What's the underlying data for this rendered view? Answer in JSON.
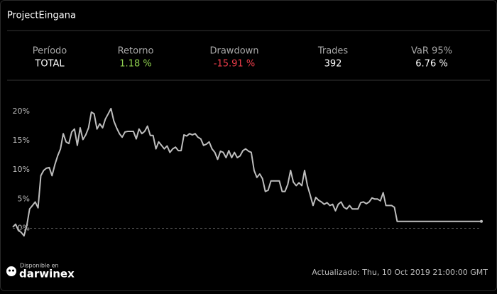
{
  "header": {
    "title": "ProjectEingana"
  },
  "stats": [
    {
      "label": "Período",
      "value": "TOTAL"
    },
    {
      "label": "Retorno",
      "value": "1.18 %"
    },
    {
      "label": "Drawdown",
      "value": "-15.91 %"
    },
    {
      "label": "Trades",
      "value": "392"
    },
    {
      "label": "VaR 95%",
      "value": "6.76 %"
    }
  ],
  "chart_data": {
    "type": "line",
    "color": "#bdbdbd",
    "ylim": [
      -2.5,
      24.5
    ],
    "yticks": [
      {
        "value": 0,
        "label": "0%"
      },
      {
        "value": 5,
        "label": "5%"
      },
      {
        "value": 10,
        "label": "10%"
      },
      {
        "value": 15,
        "label": "15%"
      },
      {
        "value": 20,
        "label": "20%"
      }
    ],
    "values": [
      0.2,
      0.7,
      -0.4,
      -0.7,
      -1.3,
      0.5,
      3.3,
      3.9,
      4.5,
      3.5,
      9.0,
      9.9,
      10.3,
      10.4,
      9.0,
      10.9,
      12.4,
      13.6,
      16.2,
      14.8,
      14.5,
      16.5,
      17.0,
      14.2,
      17.2,
      15.2,
      16.0,
      17.2,
      19.9,
      19.6,
      17.0,
      17.9,
      17.2,
      18.7,
      19.6,
      20.5,
      18.4,
      17.2,
      16.2,
      15.6,
      16.5,
      16.6,
      16.6,
      16.6,
      15.3,
      17.0,
      16.2,
      16.6,
      17.5,
      15.9,
      15.9,
      13.6,
      14.8,
      14.2,
      13.6,
      14.1,
      13.0,
      13.6,
      13.9,
      13.3,
      13.3,
      16.0,
      15.8,
      16.2,
      16.0,
      16.2,
      15.6,
      15.3,
      14.2,
      14.4,
      14.8,
      13.6,
      13.0,
      11.8,
      13.2,
      13.0,
      12.1,
      13.3,
      12.1,
      13.0,
      12.1,
      12.4,
      13.3,
      13.6,
      13.2,
      13.0,
      9.9,
      8.7,
      9.3,
      8.5,
      6.3,
      6.5,
      8.1,
      8.1,
      8.1,
      8.1,
      6.3,
      6.3,
      7.5,
      9.9,
      7.9,
      7.3,
      7.8,
      7.3,
      9.9,
      7.3,
      5.7,
      3.9,
      5.3,
      4.8,
      4.5,
      4.1,
      4.4,
      3.9,
      4.1,
      3.0,
      4.1,
      4.5,
      3.6,
      3.3,
      3.9,
      3.3,
      3.3,
      3.3,
      4.4,
      4.5,
      4.2,
      4.5,
      5.2,
      5.0,
      5.0,
      4.7,
      6.1,
      3.9,
      3.9,
      3.9,
      3.6,
      1.18,
      1.18,
      1.18,
      1.18,
      1.18,
      1.18,
      1.18,
      1.18,
      1.18,
      1.18,
      1.18,
      1.18,
      1.18,
      1.18,
      1.18,
      1.18,
      1.18,
      1.18,
      1.18,
      1.18,
      1.18,
      1.18,
      1.18,
      1.18,
      1.18,
      1.18,
      1.18,
      1.18,
      1.18,
      1.18,
      1.18
    ]
  },
  "footer": {
    "available": "Disponible en",
    "brand": "darwinex",
    "updated": "Actualizado: Thu, 10 Oct 2019 21:00:00 GMT"
  }
}
